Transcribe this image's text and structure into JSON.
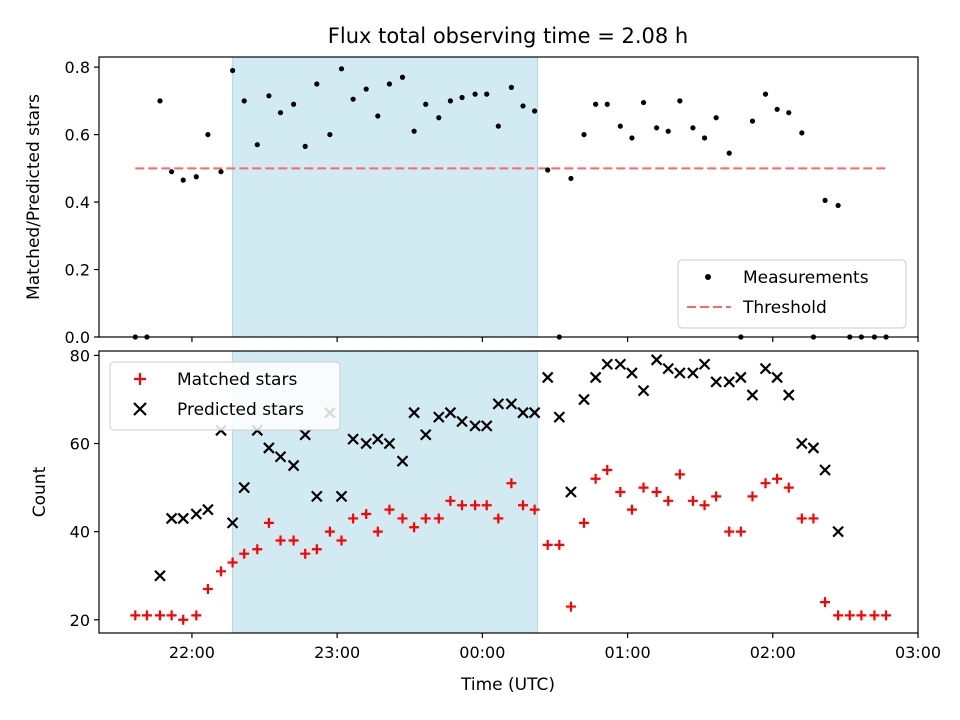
{
  "chart_data": [
    {
      "type": "scatter",
      "title": "Flux total observing time = 2.08 h",
      "xlabel": "",
      "ylabel": "Matched/Predicted stars",
      "xlim": [
        -0.64,
        5.0
      ],
      "ylim": [
        0.0,
        0.83
      ],
      "yticks": [
        0.0,
        0.2,
        0.4,
        0.6,
        0.8
      ],
      "ytick_labels": [
        "0.0",
        "0.2",
        "0.4",
        "0.6",
        "0.8"
      ],
      "shaded_span": {
        "x0": 0.28,
        "x1": 2.38,
        "color": "#add8e6"
      },
      "legend": {
        "position": "lower right",
        "entries": [
          "Measurements",
          "Threshold"
        ]
      },
      "threshold": {
        "name": "Threshold",
        "y": 0.5,
        "x0": -0.39,
        "x1": 4.8,
        "color": "#ff6666",
        "style": "dashed"
      },
      "series": [
        {
          "name": "Measurements",
          "color": "#000000",
          "marker": "dot",
          "x": [
            -0.39,
            -0.31,
            -0.22,
            -0.14,
            -0.06,
            0.03,
            0.11,
            0.2,
            0.28,
            0.36,
            0.45,
            0.53,
            0.61,
            0.7,
            0.78,
            0.86,
            0.95,
            1.03,
            1.11,
            1.2,
            1.28,
            1.36,
            1.45,
            1.53,
            1.61,
            1.7,
            1.78,
            1.86,
            1.95,
            2.03,
            2.11,
            2.2,
            2.28,
            2.36,
            2.45,
            2.53,
            2.61,
            2.7,
            2.78,
            2.86,
            2.95,
            3.03,
            3.11,
            3.2,
            3.28,
            3.36,
            3.45,
            3.53,
            3.61,
            3.7,
            3.78,
            3.86,
            3.95,
            4.03,
            4.11,
            4.2,
            4.28,
            4.36,
            4.45,
            4.53,
            4.61,
            4.7,
            4.78
          ],
          "y": [
            0.0,
            0.0,
            0.7,
            0.49,
            0.465,
            0.475,
            0.6,
            0.49,
            0.79,
            0.7,
            0.57,
            0.715,
            0.665,
            0.69,
            0.565,
            0.75,
            0.6,
            0.795,
            0.705,
            0.735,
            0.655,
            0.75,
            0.77,
            0.61,
            0.69,
            0.65,
            0.7,
            0.71,
            0.72,
            0.72,
            0.625,
            0.74,
            0.685,
            0.67,
            0.495,
            0.0,
            0.47,
            0.6,
            0.69,
            0.69,
            0.625,
            0.59,
            0.695,
            0.62,
            0.61,
            0.7,
            0.62,
            0.59,
            0.65,
            0.545,
            0.0,
            0.64,
            0.72,
            0.675,
            0.665,
            0.605,
            0.0,
            0.405,
            0.39,
            0.0,
            0.0,
            0.0,
            0.0
          ]
        }
      ]
    },
    {
      "type": "scatter",
      "title": "",
      "xlabel": "Time (UTC)",
      "ylabel": "Count",
      "xlim": [
        -0.64,
        5.0
      ],
      "ylim": [
        17,
        81
      ],
      "yticks": [
        20,
        40,
        60,
        80
      ],
      "ytick_labels": [
        "20",
        "40",
        "60",
        "80"
      ],
      "xticks": [
        0,
        1,
        2,
        3,
        4,
        5
      ],
      "xtick_labels": [
        "22:00",
        "23:00",
        "00:00",
        "01:00",
        "02:00",
        "03:00"
      ],
      "shaded_span": {
        "x0": 0.28,
        "x1": 2.38,
        "color": "#add8e6"
      },
      "legend": {
        "position": "upper left",
        "entries": [
          "Matched stars",
          "Predicted stars"
        ]
      },
      "series": [
        {
          "name": "Matched stars",
          "color": "#ff0000",
          "marker": "plus",
          "x": [
            -0.39,
            -0.31,
            -0.22,
            -0.14,
            -0.06,
            0.03,
            0.11,
            0.2,
            0.28,
            0.36,
            0.45,
            0.53,
            0.61,
            0.7,
            0.78,
            0.86,
            0.95,
            1.03,
            1.11,
            1.2,
            1.28,
            1.36,
            1.45,
            1.53,
            1.61,
            1.7,
            1.78,
            1.86,
            1.95,
            2.03,
            2.11,
            2.2,
            2.28,
            2.36,
            2.45,
            2.53,
            2.61,
            2.7,
            2.78,
            2.86,
            2.95,
            3.03,
            3.11,
            3.2,
            3.28,
            3.36,
            3.45,
            3.53,
            3.61,
            3.7,
            3.78,
            3.86,
            3.95,
            4.03,
            4.11,
            4.2,
            4.28,
            4.36,
            4.45,
            4.53,
            4.61,
            4.7,
            4.78
          ],
          "y": [
            21,
            21,
            21,
            21,
            20,
            21,
            27,
            31,
            33,
            35,
            36,
            42,
            38,
            38,
            35,
            36,
            40,
            38,
            43,
            44,
            40,
            45,
            43,
            41,
            43,
            43,
            47,
            46,
            46,
            46,
            43,
            51,
            46,
            45,
            37,
            37,
            23,
            42,
            52,
            54,
            49,
            45,
            50,
            49,
            47,
            53,
            47,
            46,
            48,
            40,
            40,
            48,
            51,
            52,
            50,
            43,
            43,
            24,
            21,
            21,
            21,
            21,
            21
          ]
        },
        {
          "name": "Predicted stars",
          "color": "#000000",
          "marker": "x",
          "x": [
            -0.22,
            -0.14,
            -0.06,
            0.03,
            0.11,
            0.2,
            0.28,
            0.36,
            0.45,
            0.53,
            0.61,
            0.7,
            0.78,
            0.86,
            0.95,
            1.03,
            1.11,
            1.2,
            1.28,
            1.36,
            1.45,
            1.53,
            1.61,
            1.7,
            1.78,
            1.86,
            1.95,
            2.03,
            2.11,
            2.2,
            2.28,
            2.36,
            2.45,
            2.53,
            2.61,
            2.7,
            2.78,
            2.86,
            2.95,
            3.03,
            3.11,
            3.2,
            3.28,
            3.36,
            3.45,
            3.53,
            3.61,
            3.7,
            3.78,
            3.86,
            3.95,
            4.03,
            4.11,
            4.2,
            4.28,
            4.36,
            4.45
          ],
          "y": [
            30,
            43,
            43,
            44,
            45,
            63,
            42,
            50,
            63,
            59,
            57,
            55,
            62,
            48,
            67,
            48,
            61,
            60,
            61,
            60,
            56,
            67,
            62,
            66,
            67,
            65,
            64,
            64,
            69,
            69,
            67,
            67,
            75,
            66,
            49,
            70,
            75,
            78,
            78,
            76,
            72,
            79,
            77,
            76,
            76,
            78,
            74,
            74,
            75,
            71,
            77,
            75,
            71,
            60,
            59,
            54,
            40
          ]
        }
      ]
    }
  ]
}
